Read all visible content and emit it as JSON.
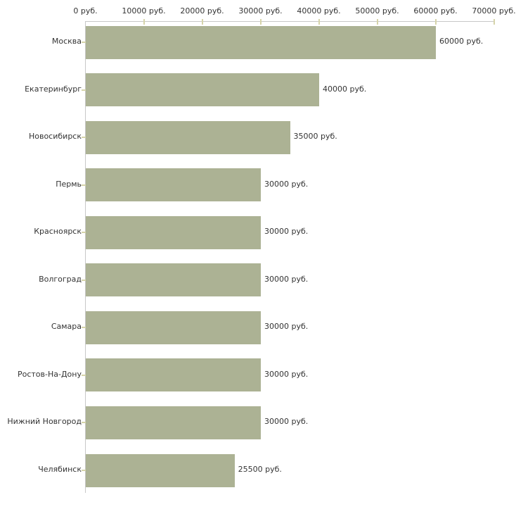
{
  "chart_data": {
    "type": "bar",
    "orientation": "horizontal",
    "title": "",
    "xlabel": "",
    "ylabel": "",
    "xlim": [
      0,
      70000
    ],
    "x_tick_step": 10000,
    "x_tick_labels": [
      "0 руб.",
      "10000 руб.",
      "20000 руб.",
      "30000 руб.",
      "40000 руб.",
      "50000 руб.",
      "60000 руб.",
      "70000 руб."
    ],
    "grid": false,
    "legend": false,
    "unit_suffix": " руб.",
    "categories": [
      "Москва",
      "Екатеринбург",
      "Новосибирск",
      "Пермь",
      "Красноярск",
      "Волгоград",
      "Самара",
      "Ростов-На-Дону",
      "Нижний Новгород",
      "Челябинск"
    ],
    "values": [
      60000,
      40000,
      35000,
      30000,
      30000,
      30000,
      30000,
      30000,
      30000,
      25500
    ],
    "bar_value_labels": [
      "60000 руб.",
      "40000 руб.",
      "35000 руб.",
      "30000 руб.",
      "30000 руб.",
      "30000 руб.",
      "30000 руб.",
      "30000 руб.",
      "30000 руб.",
      "25500 руб."
    ],
    "colors": {
      "bar": "#acb294",
      "axis_line": "#c8c8c8",
      "tick_mark": "#d6d4aa",
      "text": "#333333",
      "background": "#ffffff"
    }
  }
}
